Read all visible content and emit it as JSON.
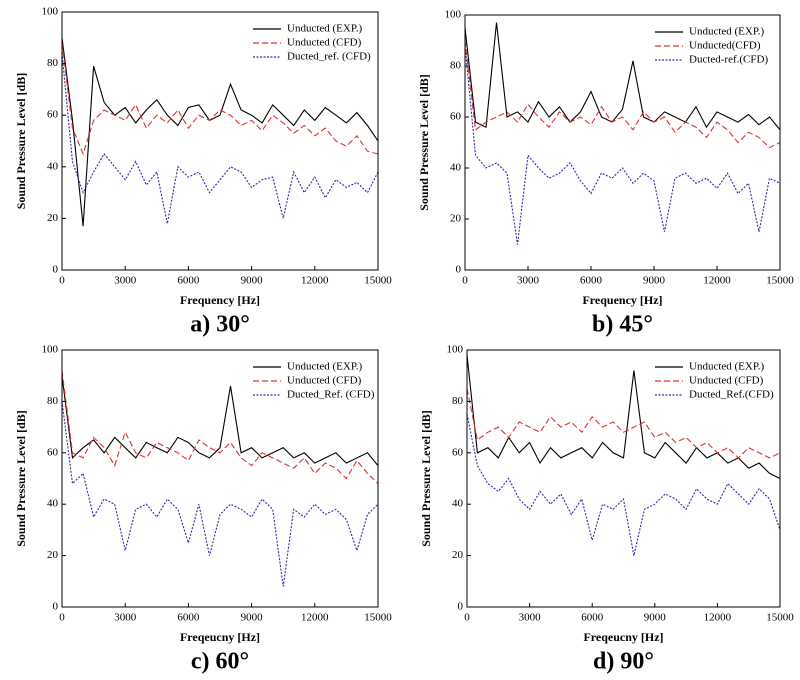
{
  "chart_data": [
    {
      "type": "line",
      "title": "a) 30°",
      "xlabel": "Frequency [Hz]",
      "ylabel": "Sound Pressure Level [dB]",
      "x": [
        0,
        500,
        1000,
        1500,
        2000,
        2500,
        3000,
        3500,
        4000,
        4500,
        5000,
        5500,
        6000,
        6500,
        7000,
        7500,
        8000,
        8500,
        9000,
        9500,
        10000,
        10500,
        11000,
        11500,
        12000,
        12500,
        13000,
        13500,
        14000,
        14500,
        15000
      ],
      "xlim": [
        0,
        15000
      ],
      "ylim": [
        0,
        100
      ],
      "xticks": [
        0,
        3000,
        6000,
        9000,
        12000,
        15000
      ],
      "yticks": [
        0,
        20,
        40,
        60,
        80,
        100
      ],
      "legend": "upper right",
      "series": [
        {
          "name": "Unducted (EXP.)",
          "color": "#000000",
          "dash": "solid",
          "values": [
            90,
            58,
            17,
            79,
            65,
            60,
            63,
            57,
            62,
            66,
            60,
            56,
            63,
            64,
            58,
            60,
            72,
            62,
            60,
            57,
            64,
            60,
            56,
            62,
            58,
            63,
            60,
            57,
            61,
            56,
            50
          ]
        },
        {
          "name": "Unducted (CFD)",
          "color": "#e03030",
          "dash": "dashed",
          "values": [
            88,
            55,
            45,
            58,
            62,
            60,
            58,
            64,
            55,
            60,
            57,
            62,
            55,
            60,
            58,
            62,
            60,
            56,
            58,
            54,
            60,
            57,
            53,
            56,
            52,
            55,
            50,
            48,
            52,
            46,
            45
          ]
        },
        {
          "name": "Ducted_ref. (CFD)",
          "color": "#2a2aa8",
          "dash": "dotted",
          "values": [
            84,
            42,
            30,
            38,
            45,
            40,
            35,
            42,
            33,
            38,
            18,
            40,
            36,
            38,
            30,
            35,
            40,
            38,
            32,
            35,
            36,
            20,
            38,
            30,
            36,
            28,
            35,
            32,
            34,
            30,
            38
          ]
        }
      ]
    },
    {
      "type": "line",
      "title": "b) 45°",
      "xlabel": "Frequency [Hz]",
      "ylabel": "Sound Pressure Level [dB]",
      "x": [
        0,
        500,
        1000,
        1500,
        2000,
        2500,
        3000,
        3500,
        4000,
        4500,
        5000,
        5500,
        6000,
        6500,
        7000,
        7500,
        8000,
        8500,
        9000,
        9500,
        10000,
        10500,
        11000,
        11500,
        12000,
        12500,
        13000,
        13500,
        14000,
        14500,
        15000
      ],
      "xlim": [
        0,
        15000
      ],
      "ylim": [
        0,
        100
      ],
      "xticks": [
        0,
        3000,
        6000,
        9000,
        12000,
        15000
      ],
      "yticks": [
        0,
        20,
        40,
        60,
        80,
        100
      ],
      "legend": "upper right",
      "series": [
        {
          "name": "Unducted (EXP.)",
          "color": "#000000",
          "dash": "solid",
          "values": [
            95,
            58,
            56,
            97,
            60,
            62,
            58,
            66,
            60,
            64,
            58,
            62,
            70,
            60,
            58,
            63,
            82,
            60,
            58,
            62,
            60,
            58,
            64,
            56,
            62,
            60,
            58,
            61,
            57,
            60,
            55
          ]
        },
        {
          "name": "Unducted(CFD)",
          "color": "#e03030",
          "dash": "dashed",
          "values": [
            90,
            55,
            58,
            60,
            62,
            58,
            65,
            60,
            56,
            62,
            58,
            60,
            57,
            64,
            58,
            60,
            55,
            62,
            58,
            60,
            54,
            58,
            56,
            52,
            58,
            55,
            50,
            54,
            52,
            48,
            50
          ]
        },
        {
          "name": "Ducted-ref.(CFD)",
          "color": "#2a2aa8",
          "dash": "dotted",
          "values": [
            88,
            45,
            40,
            42,
            38,
            10,
            45,
            40,
            36,
            38,
            42,
            35,
            30,
            38,
            36,
            40,
            34,
            38,
            35,
            15,
            36,
            38,
            34,
            36,
            32,
            38,
            30,
            34,
            15,
            36,
            34
          ]
        }
      ]
    },
    {
      "type": "line",
      "title": "c) 60°",
      "xlabel": "Freqeucny [Hz]",
      "ylabel": "Sound Pressure Level [dB]",
      "x": [
        0,
        500,
        1000,
        1500,
        2000,
        2500,
        3000,
        3500,
        4000,
        4500,
        5000,
        5500,
        6000,
        6500,
        7000,
        7500,
        8000,
        8500,
        9000,
        9500,
        10000,
        10500,
        11000,
        11500,
        12000,
        12500,
        13000,
        13500,
        14000,
        14500,
        15000
      ],
      "xlim": [
        0,
        15000
      ],
      "ylim": [
        0,
        100
      ],
      "xticks": [
        0,
        3000,
        6000,
        9000,
        12000,
        15000
      ],
      "yticks": [
        0,
        20,
        40,
        60,
        80,
        100
      ],
      "legend": "upper right",
      "series": [
        {
          "name": "Unducted (EXP.)",
          "color": "#000000",
          "dash": "solid",
          "values": [
            90,
            58,
            62,
            65,
            60,
            66,
            62,
            58,
            64,
            62,
            60,
            66,
            64,
            60,
            58,
            62,
            86,
            60,
            62,
            58,
            60,
            62,
            58,
            60,
            56,
            58,
            60,
            56,
            58,
            60,
            55
          ]
        },
        {
          "name": "Unducted (CFD)",
          "color": "#e03030",
          "dash": "dashed",
          "values": [
            92,
            60,
            58,
            66,
            62,
            55,
            68,
            60,
            58,
            64,
            62,
            60,
            57,
            65,
            62,
            60,
            64,
            58,
            55,
            60,
            58,
            56,
            54,
            58,
            52,
            56,
            54,
            50,
            57,
            52,
            48
          ]
        },
        {
          "name": "Ducted_Ref. (CFD)",
          "color": "#2a2aa8",
          "dash": "dotted",
          "values": [
            80,
            48,
            52,
            35,
            42,
            40,
            22,
            38,
            40,
            35,
            42,
            38,
            25,
            40,
            20,
            36,
            40,
            38,
            35,
            42,
            38,
            8,
            38,
            35,
            40,
            36,
            38,
            34,
            22,
            36,
            40
          ]
        }
      ]
    },
    {
      "type": "line",
      "title": "d) 90°",
      "xlabel": "Freqeucny [Hz]",
      "ylabel": "Sound Pressure Level [dB]",
      "x": [
        0,
        500,
        1000,
        1500,
        2000,
        2500,
        3000,
        3500,
        4000,
        4500,
        5000,
        5500,
        6000,
        6500,
        7000,
        7500,
        8000,
        8500,
        9000,
        9500,
        10000,
        10500,
        11000,
        11500,
        12000,
        12500,
        13000,
        13500,
        14000,
        14500,
        15000
      ],
      "xlim": [
        0,
        15000
      ],
      "ylim": [
        0,
        100
      ],
      "xticks": [
        0,
        3000,
        6000,
        9000,
        12000,
        15000
      ],
      "yticks": [
        0,
        20,
        40,
        60,
        80,
        100
      ],
      "legend": "upper right",
      "series": [
        {
          "name": "Unducted (EXP.)",
          "color": "#000000",
          "dash": "solid",
          "values": [
            98,
            60,
            62,
            58,
            66,
            60,
            64,
            56,
            62,
            58,
            60,
            62,
            58,
            64,
            60,
            58,
            92,
            60,
            58,
            64,
            60,
            56,
            62,
            58,
            60,
            56,
            58,
            54,
            56,
            52,
            50
          ]
        },
        {
          "name": "Unducted (CFD)",
          "color": "#e03030",
          "dash": "dashed",
          "values": [
            85,
            65,
            68,
            70,
            66,
            72,
            70,
            68,
            74,
            70,
            72,
            68,
            74,
            70,
            72,
            68,
            70,
            72,
            66,
            68,
            64,
            66,
            62,
            64,
            60,
            62,
            58,
            62,
            60,
            58,
            60
          ]
        },
        {
          "name": "Ducted_Ref.(CFD)",
          "color": "#2a2aa8",
          "dash": "dotted",
          "values": [
            75,
            55,
            48,
            45,
            50,
            42,
            38,
            45,
            40,
            44,
            36,
            42,
            26,
            40,
            38,
            42,
            20,
            38,
            40,
            44,
            42,
            38,
            46,
            42,
            40,
            48,
            44,
            40,
            46,
            42,
            30
          ]
        }
      ]
    }
  ]
}
